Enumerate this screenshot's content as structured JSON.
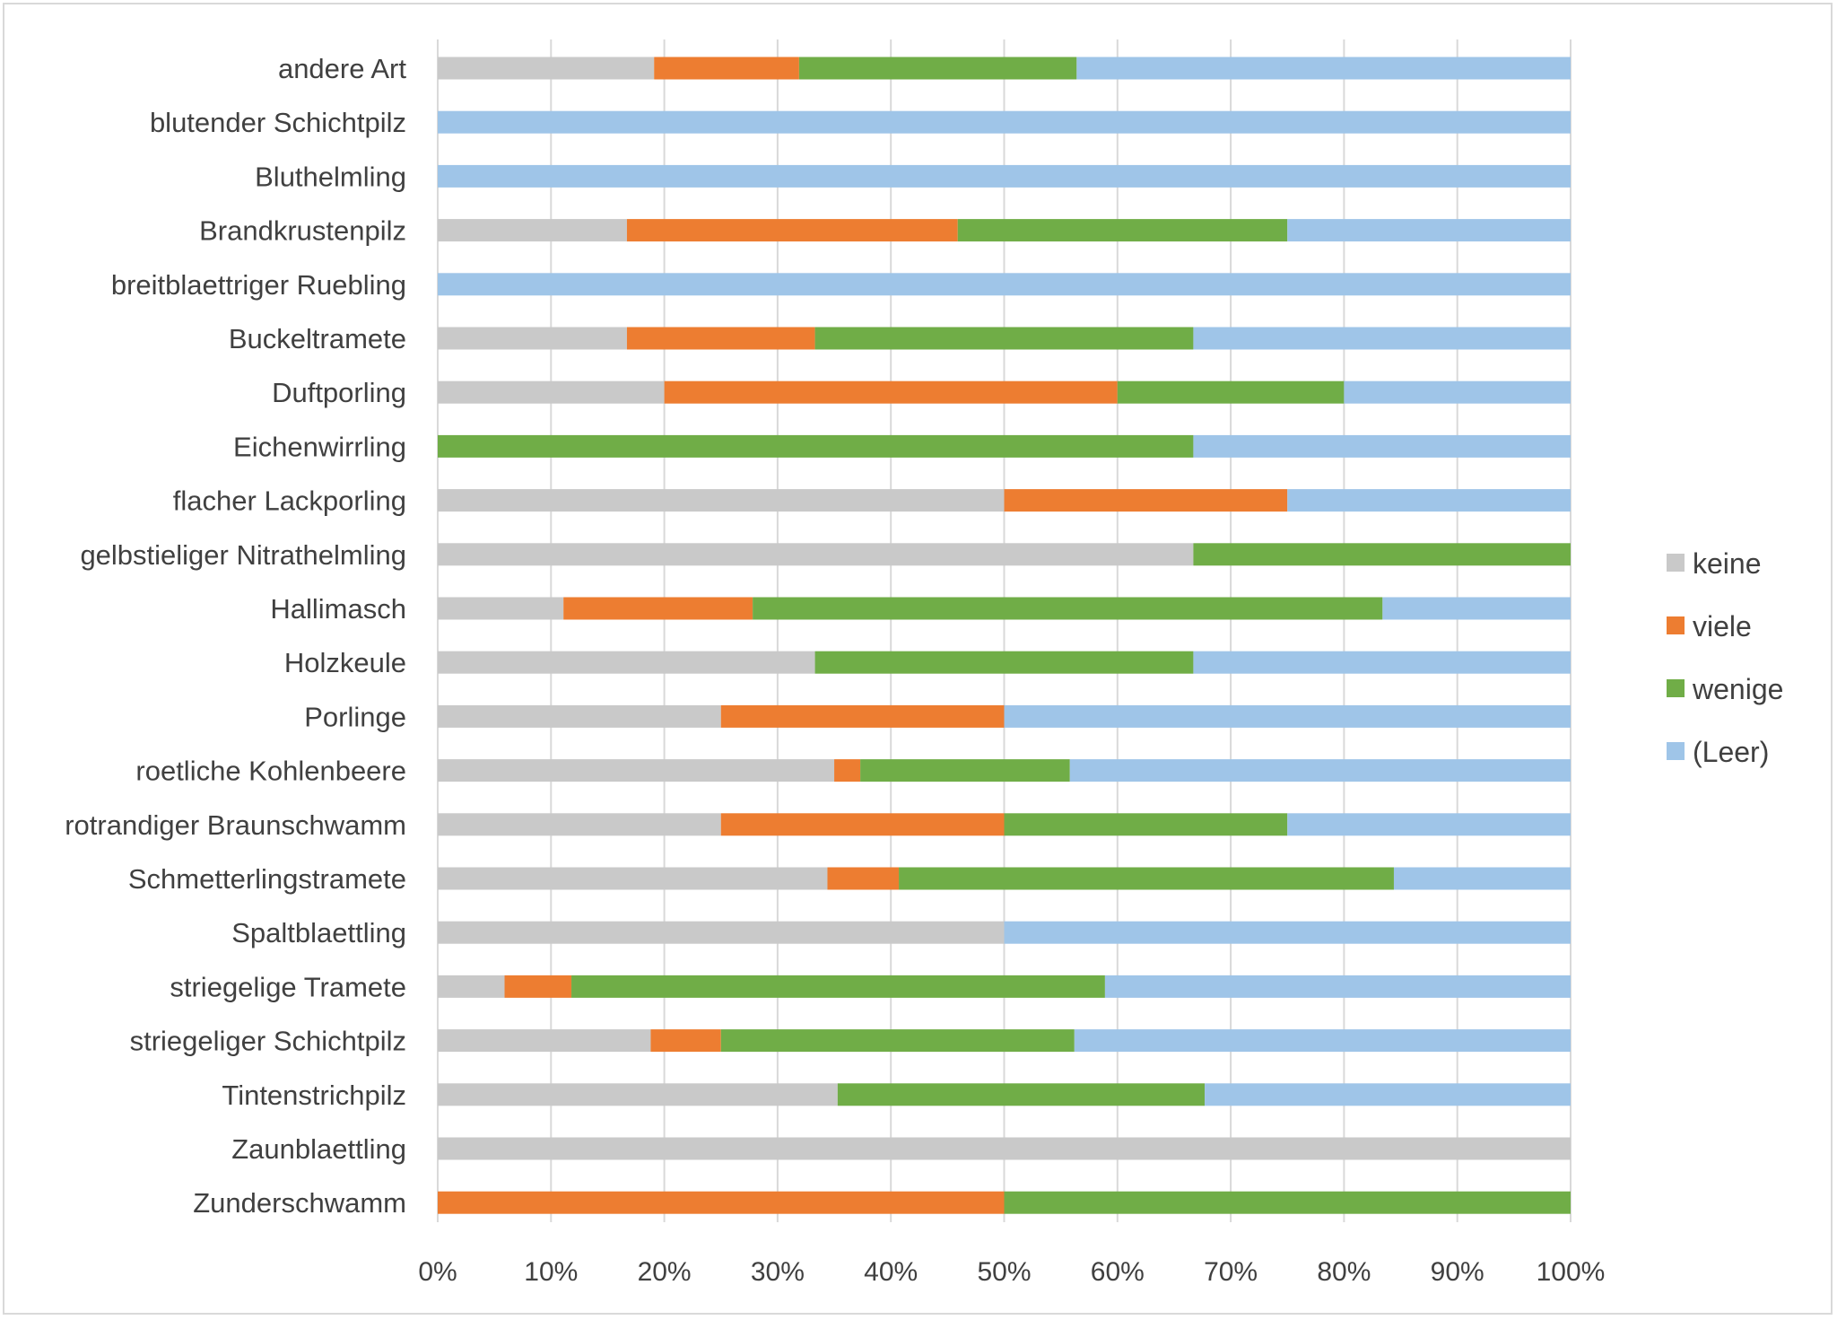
{
  "chart_data": {
    "type": "bar",
    "orientation": "horizontal",
    "stacked": "percent",
    "title": "",
    "xlabel": "",
    "ylabel": "",
    "xlim": [
      0,
      100
    ],
    "x_ticks": [
      "0%",
      "10%",
      "20%",
      "30%",
      "40%",
      "50%",
      "60%",
      "70%",
      "80%",
      "90%",
      "100%"
    ],
    "grid": "vertical",
    "legend_position": "right",
    "categories": [
      "andere Art",
      "blutender Schichtpilz",
      "Bluthelmling",
      "Brandkrustenpilz",
      "breitblaettriger Ruebling",
      "Buckeltramete",
      "Duftporling",
      "Eichenwirrling",
      "flacher Lackporling",
      "gelbstieliger Nitrathelmling",
      "Hallimasch",
      "Holzkeule",
      "Porlinge",
      "roetliche Kohlenbeere",
      "rotrandiger Braunschwamm",
      "Schmetterlingstramete",
      "Spaltblaettling",
      "striegelige Tramete",
      "striegeliger Schichtpilz",
      "Tintenstrichpilz",
      "Zaunblaettling",
      "Zunderschwamm"
    ],
    "series": [
      {
        "name": "keine",
        "color": "#c9c9c9",
        "values": [
          19.1,
          0,
          0,
          16.7,
          0,
          16.7,
          20,
          0,
          50,
          66.7,
          11.1,
          33.3,
          25,
          35,
          25,
          34.4,
          50,
          5.9,
          18.8,
          35.3,
          100,
          0
        ]
      },
      {
        "name": "viele",
        "color": "#ed7d31",
        "values": [
          12.8,
          0,
          0,
          29.2,
          0,
          16.6,
          40,
          0,
          25,
          0,
          16.7,
          0,
          25,
          2.3,
          25,
          6.3,
          0,
          5.9,
          6.2,
          0,
          0,
          50
        ]
      },
      {
        "name": "wenige",
        "color": "#70ad47",
        "values": [
          24.5,
          0,
          0,
          29.1,
          0,
          33.4,
          20,
          66.7,
          0,
          33.3,
          55.6,
          33.4,
          0,
          18.5,
          25,
          43.7,
          0,
          47.1,
          31.2,
          32.4,
          0,
          50
        ]
      },
      {
        "name": "(Leer)",
        "color": "#9fc5e8",
        "values": [
          43.6,
          100,
          100,
          25,
          100,
          33.3,
          20,
          33.3,
          25,
          0,
          16.6,
          33.3,
          50,
          44.2,
          25,
          15.6,
          50,
          41.1,
          43.8,
          32.3,
          0,
          0
        ]
      }
    ]
  }
}
